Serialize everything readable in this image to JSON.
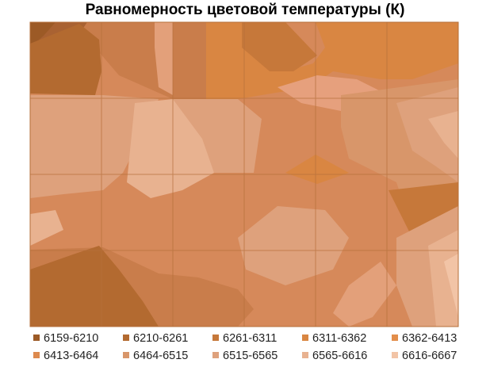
{
  "chart_data": {
    "type": "contour",
    "title": "Равномерность цветовой температуры (К)",
    "grid": true,
    "legend_position": "bottom",
    "levels": [
      {
        "label": "6159-6210",
        "color": "#9c5a26"
      },
      {
        "label": "6210-6261",
        "color": "#b36a30"
      },
      {
        "label": "6261-6311",
        "color": "#c6783a"
      },
      {
        "label": "6311-6362",
        "color": "#d98642"
      },
      {
        "label": "6362-6413",
        "color": "#e38e4b"
      },
      {
        "label": "6413-6464",
        "color": "#dd8a4e"
      },
      {
        "label": "6464-6515",
        "color": "#d8966a"
      },
      {
        "label": "6515-6565",
        "color": "#dea17c"
      },
      {
        "label": "6565-6616",
        "color": "#e8b290"
      },
      {
        "label": "6616-6667",
        "color": "#f2c4a6"
      }
    ]
  }
}
